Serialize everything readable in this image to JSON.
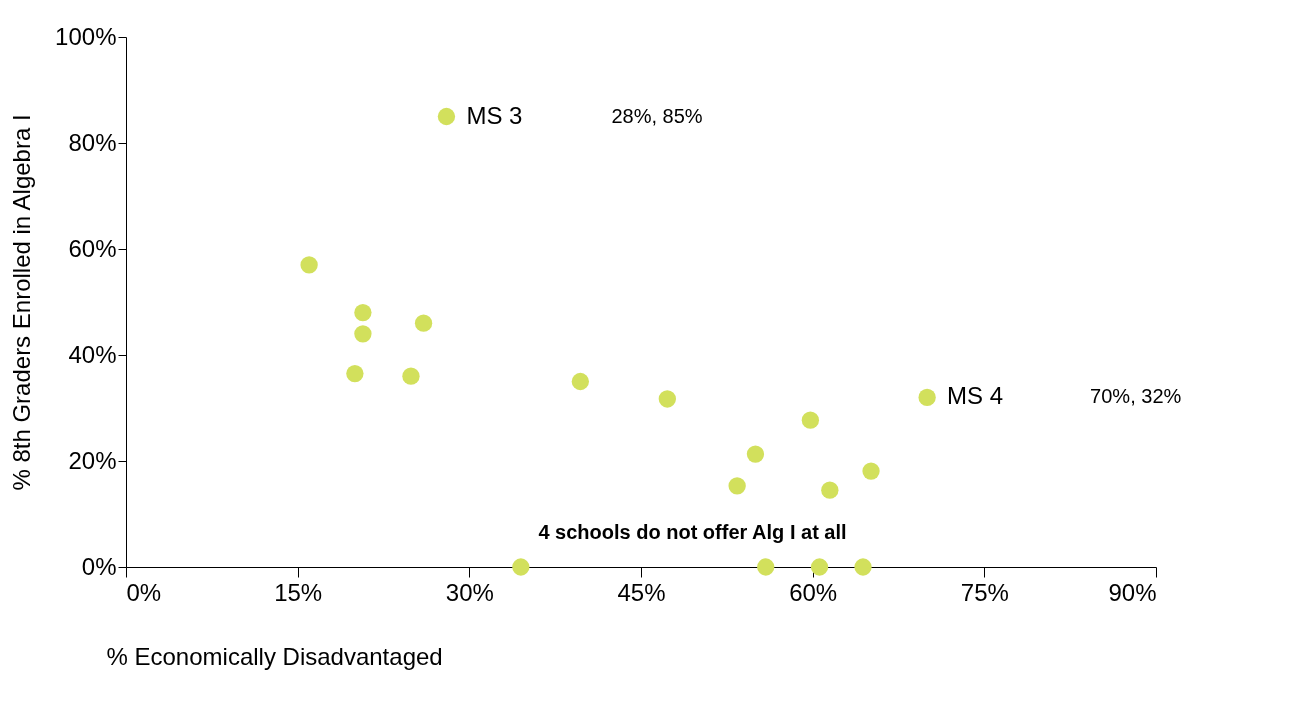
{
  "chart_data": {
    "type": "scatter",
    "xlabel": "% Economically Disadvantaged",
    "ylabel": "% 8th Graders Enrolled in Algebra I",
    "series": [
      {
        "color": "#d2e05c",
        "x": [
          28,
          16.0,
          20.7,
          20.7,
          26.0,
          20.0,
          24.9,
          39.7,
          47.3,
          59.8,
          55.0,
          53.4,
          61.5,
          65.1,
          70,
          34.5,
          55.9,
          60.6,
          64.4
        ],
        "values": [
          85,
          57,
          48,
          44,
          46,
          36.5,
          36,
          35,
          31.7,
          27.7,
          21.3,
          15.3,
          14.5,
          18.1,
          32,
          0,
          0,
          0,
          0
        ]
      }
    ],
    "xlim": [
      0,
      90
    ],
    "xticks": [
      {
        "value": 0,
        "label": "0%"
      },
      {
        "value": 15,
        "label": "15%"
      },
      {
        "value": 30,
        "label": "30%"
      },
      {
        "value": 45,
        "label": "45%"
      },
      {
        "value": 60,
        "label": "60%"
      },
      {
        "value": 75,
        "label": "75%"
      },
      {
        "value": 90,
        "label": "90%"
      }
    ],
    "ylim": [
      0,
      100
    ],
    "yticks": [
      {
        "value": 0,
        "label": "0%"
      },
      {
        "value": 20,
        "label": "20%"
      },
      {
        "value": 40,
        "label": "40%"
      },
      {
        "value": 60,
        "label": "60%"
      },
      {
        "value": 80,
        "label": "80%"
      },
      {
        "value": 100,
        "label": "100%"
      }
    ],
    "grid": false,
    "marker": "circle",
    "annotations": [
      {
        "text": "MS 3",
        "x": 28,
        "y": 85
      },
      "28%, 85%",
      {
        "text": "MS 4",
        "x": 70,
        "y": 32
      },
      "70%, 32%",
      "4 schools do not offer Alg I at all"
    ]
  }
}
